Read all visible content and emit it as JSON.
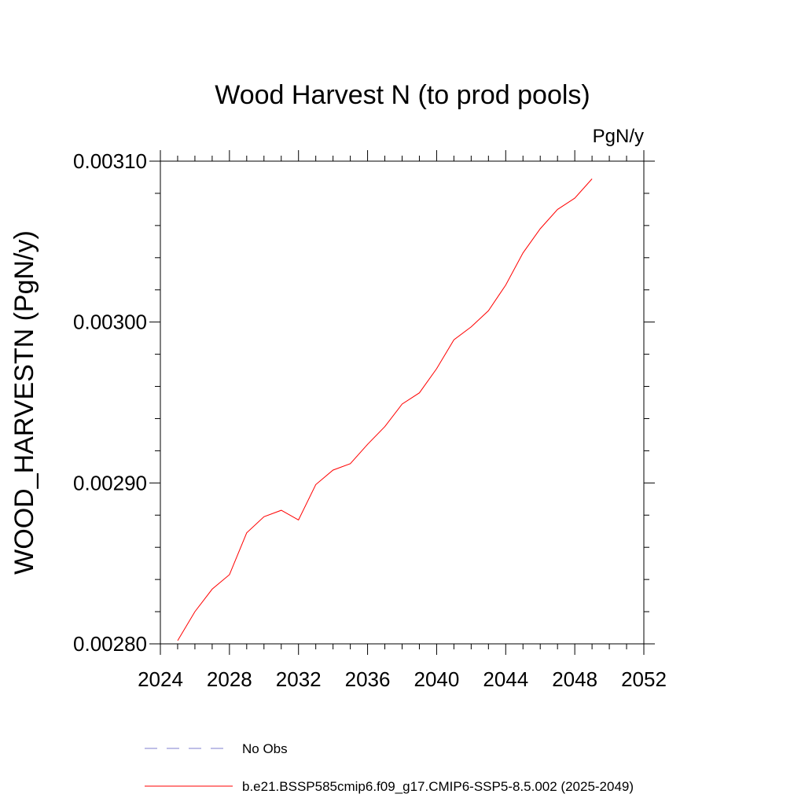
{
  "chart_data": {
    "type": "line",
    "title": "Wood Harvest N (to prod pools)",
    "units": "PgN/y",
    "ylabel": "WOOD_HARVESTN  (PgN/y)",
    "xlabel": "",
    "xlim": [
      2024,
      2052
    ],
    "ylim": [
      0.0028,
      0.0031
    ],
    "x_ticks": [
      2024,
      2028,
      2032,
      2036,
      2040,
      2044,
      2048,
      2052
    ],
    "x_tick_labels": [
      "2024",
      "2028",
      "2032",
      "2036",
      "2040",
      "2044",
      "2048",
      "2052"
    ],
    "y_ticks": [
      0.0028,
      0.0029,
      0.003,
      0.0031
    ],
    "y_tick_labels": [
      "0.00280",
      "0.00290",
      "0.00300",
      "0.00310"
    ],
    "grid": false,
    "legend_position": "bottom",
    "series": [
      {
        "name": "No Obs",
        "color": "#7f7fcf",
        "dash": "dashed",
        "x": [],
        "y": []
      },
      {
        "name": "b.e21.BSSP585cmip6.f09_g17.CMIP6-SSP5-8.5.002 (2025-2049)",
        "color": "#ff0000",
        "dash": "solid",
        "x": [
          2025,
          2026,
          2027,
          2028,
          2029,
          2030,
          2031,
          2032,
          2033,
          2034,
          2035,
          2036,
          2037,
          2038,
          2039,
          2040,
          2041,
          2042,
          2043,
          2044,
          2045,
          2046,
          2047,
          2048,
          2049
        ],
        "y": [
          0.002802,
          0.00282,
          0.002834,
          0.002843,
          0.002869,
          0.002879,
          0.002883,
          0.002877,
          0.002899,
          0.002908,
          0.002912,
          0.002924,
          0.002935,
          0.002949,
          0.002956,
          0.002971,
          0.002989,
          0.002997,
          0.003007,
          0.003023,
          0.003043,
          0.003058,
          0.00307,
          0.003077,
          0.003089
        ]
      }
    ]
  }
}
